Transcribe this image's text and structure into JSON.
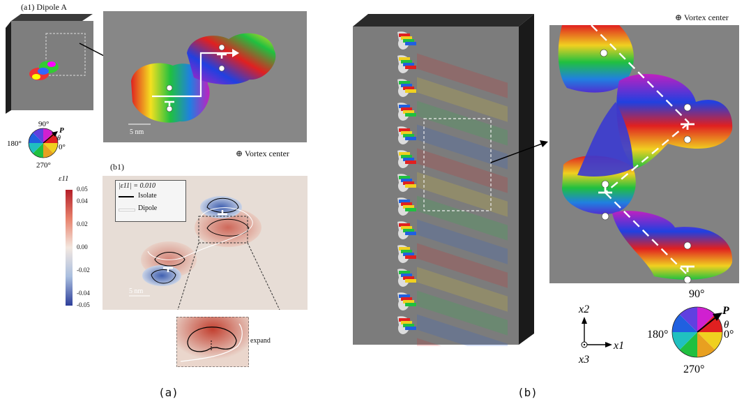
{
  "panel_a": {
    "a1_label": "(a1) Dipole A",
    "b1_label": "(b1)",
    "scale_bar_top": "5 nm",
    "scale_bar_bottom": "5 nm",
    "vortex_center": "⊕ Vortex center",
    "angle_wheel": {
      "top": "90°",
      "left": "180°",
      "right": "0°",
      "bottom": "270°",
      "vector": "P",
      "angle": "θ"
    },
    "colorbar": {
      "title": "ε11",
      "ticks": [
        "0.05",
        "0.04",
        "0.02",
        "0.00",
        "-0.02",
        "-0.04",
        "-0.05"
      ]
    },
    "legend": {
      "threshold": "|ε11| = 0.010",
      "items": [
        {
          "label": "Isolate",
          "color": "#000000"
        },
        {
          "label": "Dipole",
          "color": "#ffffff"
        }
      ]
    },
    "expand_label": "expand",
    "caption": "(a)"
  },
  "panel_b": {
    "vortex_center": "⊕ Vortex center",
    "angle_wheel": {
      "top": "90°",
      "left": "180°",
      "right": "0°",
      "bottom": "270°",
      "vector": "P",
      "angle": "θ"
    },
    "axes": {
      "x1": "x1",
      "x2": "x2",
      "x3": "x3"
    },
    "caption": "(b)"
  },
  "colors": {
    "panel_gray": "#8a8a8a",
    "dark_block": "#2e2e2e",
    "strain_pos": "#c0392b",
    "strain_neg": "#2c3e9a"
  }
}
